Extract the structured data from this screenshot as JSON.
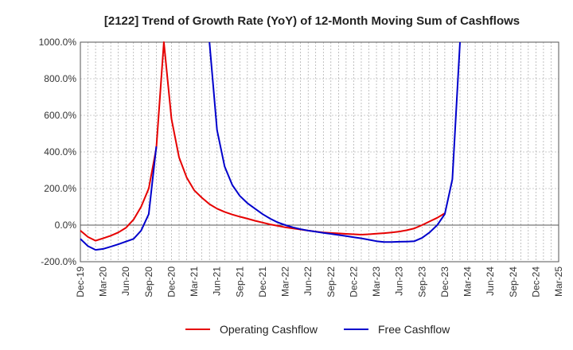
{
  "chart_data": {
    "type": "line",
    "title": "[2122]  Trend of Growth Rate (YoY) of 12-Month Moving Sum of Cashflows",
    "xlabel": "",
    "ylabel": "",
    "x_ticks": [
      "Dec-19",
      "Mar-20",
      "Jun-20",
      "Sep-20",
      "Dec-20",
      "Mar-21",
      "Jun-21",
      "Sep-21",
      "Dec-21",
      "Mar-22",
      "Jun-22",
      "Sep-22",
      "Dec-22",
      "Mar-23",
      "Jun-23",
      "Sep-23",
      "Dec-23",
      "Mar-24",
      "Jun-24",
      "Sep-24",
      "Dec-24",
      "Mar-25"
    ],
    "y_ticks": [
      "1000.0%",
      "800.0%",
      "600.0%",
      "400.0%",
      "200.0%",
      "0.0%",
      "-200.0%"
    ],
    "ylim": [
      -200,
      1000
    ],
    "grid": true,
    "legend_position": "bottom",
    "series": [
      {
        "name": "Operating Cashflow",
        "color": "#e60000",
        "values": [
          -30,
          -65,
          -85,
          -72,
          -58,
          -40,
          -15,
          30,
          100,
          200,
          420,
          1200,
          580,
          370,
          260,
          190,
          150,
          115,
          90,
          72,
          58,
          46,
          35,
          24,
          14,
          4,
          -4,
          -12,
          -18,
          -24,
          -30,
          -35,
          -40,
          -43,
          -45,
          -48,
          -50,
          -52,
          -50,
          -47,
          -44,
          -40,
          -35,
          -28,
          -18,
          0,
          20,
          40,
          65
        ]
      },
      {
        "name": "Free Cashflow",
        "color": "#0000cc",
        "values": [
          -75,
          -115,
          -135,
          -130,
          -118,
          -105,
          -90,
          -75,
          -30,
          60,
          430,
          null,
          null,
          null,
          null,
          null,
          null,
          1200,
          520,
          320,
          220,
          160,
          120,
          90,
          60,
          35,
          15,
          0,
          -12,
          -22,
          -30,
          -36,
          -42,
          -48,
          -54,
          -60,
          -66,
          -72,
          -80,
          -88,
          -92,
          -92,
          -91,
          -90,
          -88,
          -70,
          -40,
          0,
          60,
          250,
          1200
        ]
      }
    ]
  }
}
